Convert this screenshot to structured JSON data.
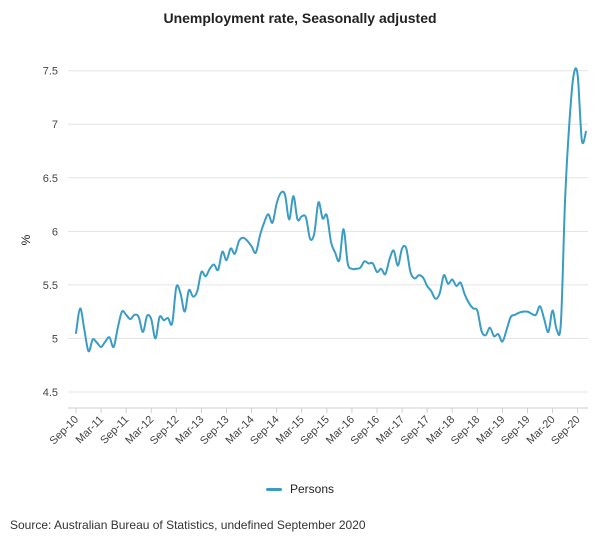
{
  "chart_data": {
    "type": "line",
    "title": "Unemployment rate, Seasonally adjusted",
    "ylabel": "%",
    "xlabel": "",
    "ylim": [
      4.35,
      7.6
    ],
    "yticks": [
      4.5,
      5,
      5.5,
      6,
      6.5,
      7,
      7.5
    ],
    "ytick_labels": [
      "4.5",
      "5",
      "5.5",
      "6",
      "6.5",
      "7",
      "7.5"
    ],
    "xtick_labels": [
      "Sep-10",
      "Mar-11",
      "Sep-11",
      "Mar-12",
      "Sep-12",
      "Mar-13",
      "Sep-13",
      "Mar-14",
      "Sep-14",
      "Mar-15",
      "Sep-15",
      "Mar-16",
      "Sep-16",
      "Mar-17",
      "Sep-17",
      "Mar-18",
      "Sep-18",
      "Mar-19",
      "Sep-19",
      "Mar-20",
      "Sep-20"
    ],
    "grid": true,
    "legend_position": "bottom-center",
    "series": [
      {
        "name": "Persons",
        "color": "#3a9cc5",
        "values": [
          5.05,
          5.28,
          5.08,
          4.88,
          4.99,
          4.96,
          4.92,
          4.97,
          5.01,
          4.92,
          5.1,
          5.25,
          5.22,
          5.18,
          5.22,
          5.2,
          5.06,
          5.21,
          5.18,
          5.0,
          5.2,
          5.17,
          5.19,
          5.14,
          5.48,
          5.42,
          5.25,
          5.45,
          5.39,
          5.44,
          5.62,
          5.58,
          5.65,
          5.69,
          5.64,
          5.81,
          5.73,
          5.84,
          5.79,
          5.91,
          5.94,
          5.91,
          5.86,
          5.8,
          5.96,
          6.08,
          6.16,
          6.08,
          6.26,
          6.36,
          6.34,
          6.11,
          6.33,
          6.11,
          6.14,
          6.13,
          5.93,
          5.98,
          6.27,
          6.12,
          6.15,
          5.9,
          5.8,
          5.73,
          6.02,
          5.7,
          5.65,
          5.65,
          5.66,
          5.72,
          5.7,
          5.7,
          5.62,
          5.65,
          5.6,
          5.74,
          5.82,
          5.68,
          5.84,
          5.84,
          5.62,
          5.56,
          5.59,
          5.57,
          5.49,
          5.44,
          5.37,
          5.42,
          5.59,
          5.51,
          5.55,
          5.49,
          5.52,
          5.41,
          5.33,
          5.28,
          5.26,
          5.07,
          5.03,
          5.1,
          5.02,
          5.04,
          4.97,
          5.08,
          5.2,
          5.22,
          5.24,
          5.25,
          5.25,
          5.23,
          5.22,
          5.3,
          5.18,
          5.06,
          5.26,
          5.08,
          5.15,
          6.3,
          7.0,
          7.45,
          7.46,
          6.85,
          6.93
        ]
      }
    ]
  },
  "legend": {
    "label": "Persons",
    "color": "#3a9cc5"
  },
  "source_text": "Source: Australian Bureau of Statistics, undefined September 2020"
}
